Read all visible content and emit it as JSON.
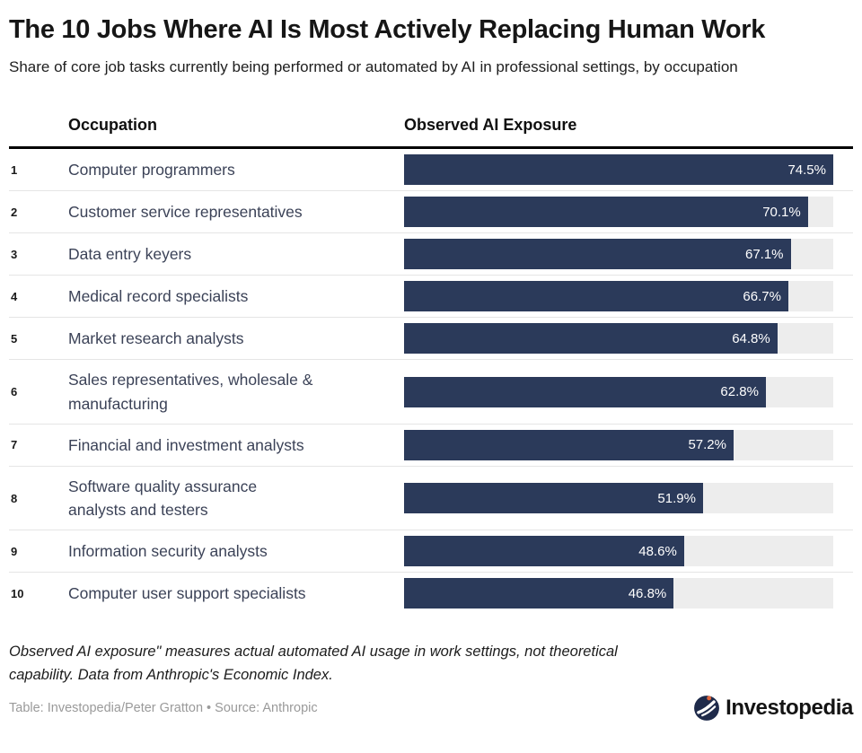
{
  "title": "The 10 Jobs Where AI Is Most Actively Replacing Human Work",
  "subtitle": "Share of core job tasks currently being performed or automated by AI in professional settings, by occupation",
  "table": {
    "col_occupation": "Occupation",
    "col_exposure": "Observed AI Exposure"
  },
  "rows": [
    {
      "rank": "1",
      "label": "Computer programmers",
      "value": 74.5,
      "display": "74.5%"
    },
    {
      "rank": "2",
      "label": "Customer service representatives",
      "value": 70.1,
      "display": "70.1%"
    },
    {
      "rank": "3",
      "label": "Data entry keyers",
      "value": 67.1,
      "display": "67.1%"
    },
    {
      "rank": "4",
      "label": "Medical record specialists",
      "value": 66.7,
      "display": "66.7%"
    },
    {
      "rank": "5",
      "label": "Market research analysts",
      "value": 64.8,
      "display": "64.8%"
    },
    {
      "rank": "6",
      "label": "Sales representatives, wholesale &\nmanufacturing",
      "value": 62.8,
      "display": "62.8%"
    },
    {
      "rank": "7",
      "label": "Financial and investment analysts",
      "value": 57.2,
      "display": "57.2%"
    },
    {
      "rank": "8",
      "label": "Software quality assurance\nanalysts and testers",
      "value": 51.9,
      "display": "51.9%"
    },
    {
      "rank": "9",
      "label": "Information security analysts",
      "value": 48.6,
      "display": "48.6%"
    },
    {
      "rank": "10",
      "label": "Computer user support specialists",
      "value": 46.8,
      "display": "46.8%"
    }
  ],
  "chart_data": {
    "type": "bar",
    "orientation": "horizontal",
    "title": "The 10 Jobs Where AI Is Most Actively Replacing Human Work",
    "subtitle": "Share of core job tasks currently being performed or automated by AI in professional settings, by occupation",
    "categories": [
      "Computer programmers",
      "Customer service representatives",
      "Data entry keyers",
      "Medical record specialists",
      "Market research analysts",
      "Sales representatives, wholesale & manufacturing",
      "Financial and investment analysts",
      "Software quality assurance analysts and testers",
      "Information security analysts",
      "Computer user support specialists"
    ],
    "values": [
      74.5,
      70.1,
      67.1,
      66.7,
      64.8,
      62.8,
      57.2,
      51.9,
      48.6,
      46.8
    ],
    "value_labels": [
      "74.5%",
      "70.1%",
      "67.1%",
      "66.7%",
      "64.8%",
      "62.8%",
      "57.2%",
      "51.9%",
      "48.6%",
      "46.8%"
    ],
    "unit": "%",
    "xlabel": "Observed AI Exposure",
    "ylabel": "Occupation",
    "xlim": [
      0,
      74.5
    ],
    "grid": false,
    "legend": false,
    "value_label_position": "inside-end"
  },
  "footnote": "Observed AI exposure\" measures actual automated AI usage in work settings, not theoretical capability. Data from Anthropic's Economic Index.",
  "credit": "Table: Investopedia/Peter Gratton • Source: Anthropic",
  "logo": {
    "text": "Investopedia"
  },
  "colors": {
    "bar": "#2b3a5a",
    "track": "#ededed",
    "separator": "#e5e5e5",
    "header_rule": "#000000",
    "occupation_text": "#3b4257",
    "credit_text": "#9a9a9a",
    "logo_navy": "#1e2a4a",
    "logo_orange": "#e0663c"
  }
}
